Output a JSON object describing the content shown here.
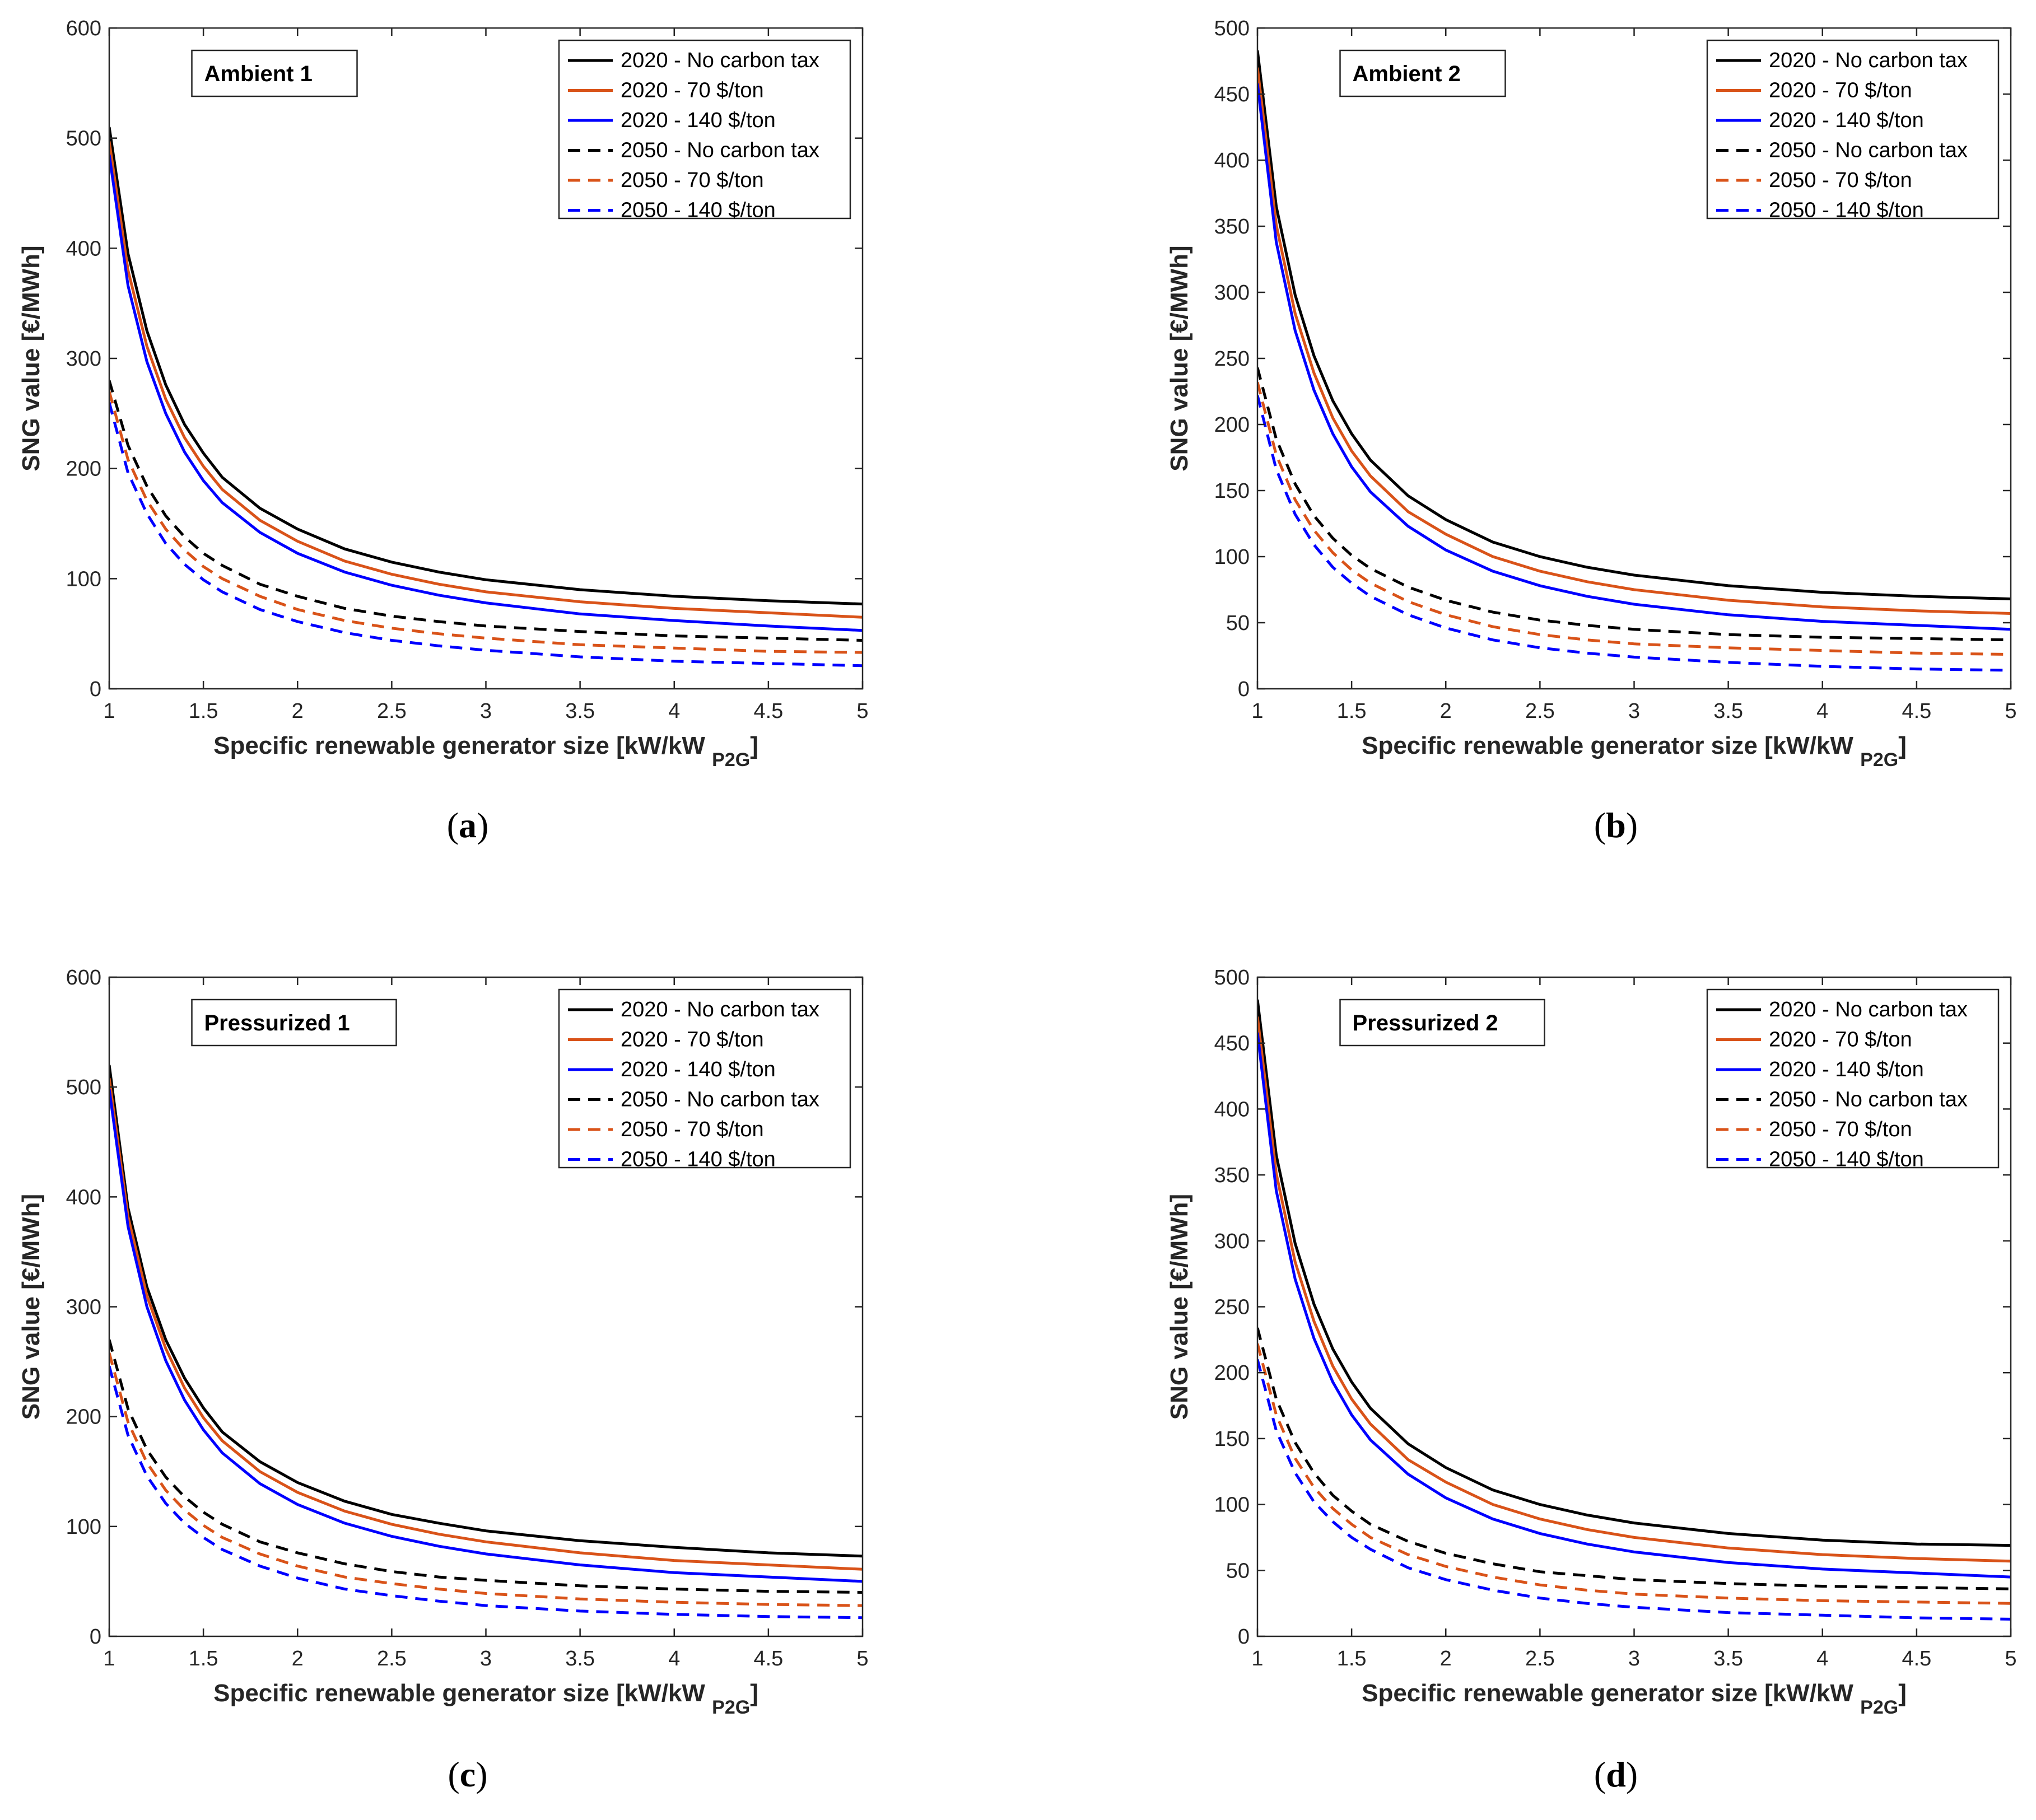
{
  "series_styles": [
    {
      "color": "#000000",
      "dash": "solid"
    },
    {
      "color": "#D95319",
      "dash": "solid"
    },
    {
      "color": "#0000FF",
      "dash": "solid"
    },
    {
      "color": "#000000",
      "dash": "dashed"
    },
    {
      "color": "#D95319",
      "dash": "dashed"
    },
    {
      "color": "#0000FF",
      "dash": "dashed"
    }
  ],
  "chart_data": [
    {
      "type": "line",
      "panel_label": "Ambient 1",
      "caption": "a",
      "xlabel": "Specific renewable generator size [kW/kW",
      "xlabel_subscript": "P2G",
      "xlabel_suffix": "]",
      "ylabel": "SNG value [€/MWh]",
      "xlim": [
        1,
        5
      ],
      "ylim": [
        0,
        600
      ],
      "xticks": [
        1,
        1.5,
        2,
        2.5,
        3,
        3.5,
        4,
        4.5,
        5
      ],
      "xtick_labels": [
        "1",
        "1.5",
        "2",
        "2.5",
        "3",
        "3.5",
        "4",
        "4.5",
        "5"
      ],
      "yticks": [
        0,
        100,
        200,
        300,
        400,
        500,
        600
      ],
      "ytick_labels": [
        "0",
        "100",
        "200",
        "300",
        "400",
        "500",
        "600"
      ],
      "grid": false,
      "legend_position": "top-right",
      "x": [
        1,
        1.1,
        1.2,
        1.3,
        1.4,
        1.5,
        1.6,
        1.8,
        2,
        2.25,
        2.5,
        2.75,
        3,
        3.5,
        4,
        4.5,
        5
      ],
      "series": [
        {
          "name": "2020 - No carbon tax",
          "values": [
            510,
            395,
            325,
            276,
            240,
            214,
            192,
            164,
            145,
            127,
            115,
            106,
            99,
            90,
            84,
            80,
            77
          ]
        },
        {
          "name": "2020 - 70 $/ton",
          "values": [
            497,
            380,
            311,
            263,
            228,
            202,
            181,
            153,
            134,
            116,
            104,
            95,
            88,
            79,
            73,
            69,
            65
          ]
        },
        {
          "name": "2020 - 140 $/ton",
          "values": [
            485,
            366,
            297,
            250,
            215,
            189,
            169,
            142,
            123,
            106,
            94,
            85,
            78,
            68,
            62,
            57,
            53
          ]
        },
        {
          "name": "2050 - No carbon tax",
          "values": [
            280,
            221,
            184,
            157,
            138,
            123,
            112,
            95,
            84,
            73,
            66,
            61,
            57,
            52,
            48,
            46,
            44
          ]
        },
        {
          "name": "2050 - 70 $/ton",
          "values": [
            270,
            208,
            171,
            145,
            126,
            111,
            100,
            84,
            72,
            62,
            55,
            50,
            46,
            40,
            37,
            34,
            33
          ]
        },
        {
          "name": "2050 - 140 $/ton",
          "values": [
            260,
            196,
            159,
            132,
            113,
            99,
            88,
            72,
            61,
            51,
            44,
            39,
            35,
            29,
            25,
            23,
            21
          ]
        }
      ]
    },
    {
      "type": "line",
      "panel_label": "Ambient 2",
      "caption": "b",
      "xlabel": "Specific renewable generator size [kW/kW",
      "xlabel_subscript": "P2G",
      "xlabel_suffix": "]",
      "ylabel": "SNG value [€/MWh]",
      "xlim": [
        1,
        5
      ],
      "ylim": [
        0,
        500
      ],
      "xticks": [
        1,
        1.5,
        2,
        2.5,
        3,
        3.5,
        4,
        4.5,
        5
      ],
      "xtick_labels": [
        "1",
        "1.5",
        "2",
        "2.5",
        "3",
        "3.5",
        "4",
        "4.5",
        "5"
      ],
      "yticks": [
        0,
        50,
        100,
        150,
        200,
        250,
        300,
        350,
        400,
        450,
        500
      ],
      "ytick_labels": [
        "0",
        "50",
        "100",
        "150",
        "200",
        "250",
        "300",
        "350",
        "400",
        "450",
        "500"
      ],
      "grid": false,
      "legend_position": "top-right",
      "x": [
        1,
        1.1,
        1.2,
        1.3,
        1.4,
        1.5,
        1.6,
        1.8,
        2,
        2.25,
        2.5,
        2.75,
        3,
        3.5,
        4,
        4.5,
        5
      ],
      "series": [
        {
          "name": "2020 - No carbon tax",
          "values": [
            483,
            365,
            298,
            252,
            218,
            193,
            173,
            146,
            128,
            111,
            100,
            92,
            86,
            78,
            73,
            70,
            68
          ]
        },
        {
          "name": "2020 - 70 $/ton",
          "values": [
            470,
            351,
            284,
            239,
            205,
            180,
            161,
            134,
            117,
            100,
            89,
            81,
            75,
            67,
            62,
            59,
            57
          ]
        },
        {
          "name": "2020 - 140 $/ton",
          "values": [
            458,
            338,
            271,
            226,
            193,
            168,
            149,
            123,
            105,
            89,
            78,
            70,
            64,
            56,
            51,
            48,
            45
          ]
        },
        {
          "name": "2050 - No carbon tax",
          "values": [
            243,
            189,
            155,
            131,
            114,
            101,
            91,
            77,
            67,
            58,
            52,
            48,
            45,
            41,
            39,
            38,
            37
          ]
        },
        {
          "name": "2050 - 70 $/ton",
          "values": [
            232,
            177,
            143,
            120,
            103,
            90,
            80,
            66,
            56,
            47,
            41,
            37,
            34,
            31,
            29,
            27,
            26
          ]
        },
        {
          "name": "2050 - 140 $/ton",
          "values": [
            222,
            166,
            132,
            109,
            92,
            80,
            70,
            56,
            46,
            37,
            31,
            27,
            24,
            20,
            17,
            15,
            14
          ]
        }
      ]
    },
    {
      "type": "line",
      "panel_label": "Pressurized 1",
      "caption": "c",
      "xlabel": "Specific renewable generator size [kW/kW",
      "xlabel_subscript": "P2G",
      "xlabel_suffix": "]",
      "ylabel": "SNG value [€/MWh]",
      "xlim": [
        1,
        5
      ],
      "ylim": [
        0,
        600
      ],
      "xticks": [
        1,
        1.5,
        2,
        2.5,
        3,
        3.5,
        4,
        4.5,
        5
      ],
      "xtick_labels": [
        "1",
        "1.5",
        "2",
        "2.5",
        "3",
        "3.5",
        "4",
        "4.5",
        "5"
      ],
      "yticks": [
        0,
        100,
        200,
        300,
        400,
        500,
        600
      ],
      "ytick_labels": [
        "0",
        "100",
        "200",
        "300",
        "400",
        "500",
        "600"
      ],
      "grid": false,
      "legend_position": "top-right",
      "x": [
        1,
        1.1,
        1.2,
        1.3,
        1.4,
        1.5,
        1.6,
        1.8,
        2,
        2.25,
        2.5,
        2.75,
        3,
        3.5,
        4,
        4.5,
        5
      ],
      "series": [
        {
          "name": "2020 - No carbon tax",
          "values": [
            520,
            390,
            318,
            270,
            235,
            208,
            186,
            159,
            140,
            123,
            111,
            103,
            96,
            87,
            81,
            76,
            73
          ]
        },
        {
          "name": "2020 - 70 $/ton",
          "values": [
            508,
            382,
            310,
            262,
            226,
            199,
            178,
            150,
            131,
            114,
            102,
            93,
            86,
            76,
            69,
            65,
            61
          ]
        },
        {
          "name": "2020 - 140 $/ton",
          "values": [
            498,
            373,
            300,
            251,
            215,
            188,
            167,
            139,
            120,
            103,
            91,
            82,
            75,
            65,
            58,
            54,
            50
          ]
        },
        {
          "name": "2050 - No carbon tax",
          "values": [
            270,
            207,
            170,
            145,
            127,
            113,
            102,
            86,
            76,
            66,
            59,
            54,
            51,
            46,
            43,
            41,
            40
          ]
        },
        {
          "name": "2050 - 70 $/ton",
          "values": [
            258,
            195,
            158,
            133,
            115,
            101,
            90,
            75,
            64,
            54,
            48,
            43,
            39,
            34,
            31,
            29,
            28
          ]
        },
        {
          "name": "2050 - 140 $/ton",
          "values": [
            246,
            183,
            146,
            121,
            103,
            90,
            79,
            64,
            53,
            43,
            37,
            32,
            28,
            23,
            20,
            18,
            17
          ]
        }
      ]
    },
    {
      "type": "line",
      "panel_label": "Pressurized 2",
      "caption": "d",
      "xlabel": "Specific renewable generator size [kW/kW",
      "xlabel_subscript": "P2G",
      "xlabel_suffix": "]",
      "ylabel": "SNG value [€/MWh]",
      "xlim": [
        1,
        5
      ],
      "ylim": [
        0,
        500
      ],
      "xticks": [
        1,
        1.5,
        2,
        2.5,
        3,
        3.5,
        4,
        4.5,
        5
      ],
      "xtick_labels": [
        "1",
        "1.5",
        "2",
        "2.5",
        "3",
        "3.5",
        "4",
        "4.5",
        "5"
      ],
      "yticks": [
        0,
        50,
        100,
        150,
        200,
        250,
        300,
        350,
        400,
        450,
        500
      ],
      "ytick_labels": [
        "0",
        "50",
        "100",
        "150",
        "200",
        "250",
        "300",
        "350",
        "400",
        "450",
        "500"
      ],
      "grid": false,
      "legend_position": "top-right",
      "x": [
        1,
        1.1,
        1.2,
        1.3,
        1.4,
        1.5,
        1.6,
        1.8,
        2,
        2.25,
        2.5,
        2.75,
        3,
        3.5,
        4,
        4.5,
        5
      ],
      "series": [
        {
          "name": "2020 - No carbon tax",
          "values": [
            483,
            365,
            298,
            252,
            218,
            193,
            173,
            146,
            128,
            111,
            100,
            92,
            86,
            78,
            73,
            70,
            69
          ]
        },
        {
          "name": "2020 - 70 $/ton",
          "values": [
            470,
            351,
            284,
            239,
            205,
            180,
            161,
            134,
            117,
            100,
            89,
            81,
            75,
            67,
            62,
            59,
            57
          ]
        },
        {
          "name": "2020 - 140 $/ton",
          "values": [
            458,
            338,
            271,
            226,
            193,
            168,
            149,
            123,
            105,
            89,
            78,
            70,
            64,
            56,
            51,
            48,
            45
          ]
        },
        {
          "name": "2050 - No carbon tax",
          "values": [
            234,
            180,
            147,
            124,
            107,
            95,
            85,
            72,
            63,
            55,
            49,
            46,
            43,
            40,
            38,
            37,
            36
          ]
        },
        {
          "name": "2050 - 70 $/ton",
          "values": [
            222,
            168,
            135,
            113,
            97,
            85,
            75,
            62,
            53,
            45,
            39,
            35,
            32,
            29,
            27,
            26,
            25
          ]
        },
        {
          "name": "2050 - 140 $/ton",
          "values": [
            210,
            156,
            124,
            102,
            87,
            75,
            66,
            52,
            43,
            35,
            29,
            25,
            22,
            18,
            16,
            14,
            13
          ]
        }
      ]
    }
  ]
}
